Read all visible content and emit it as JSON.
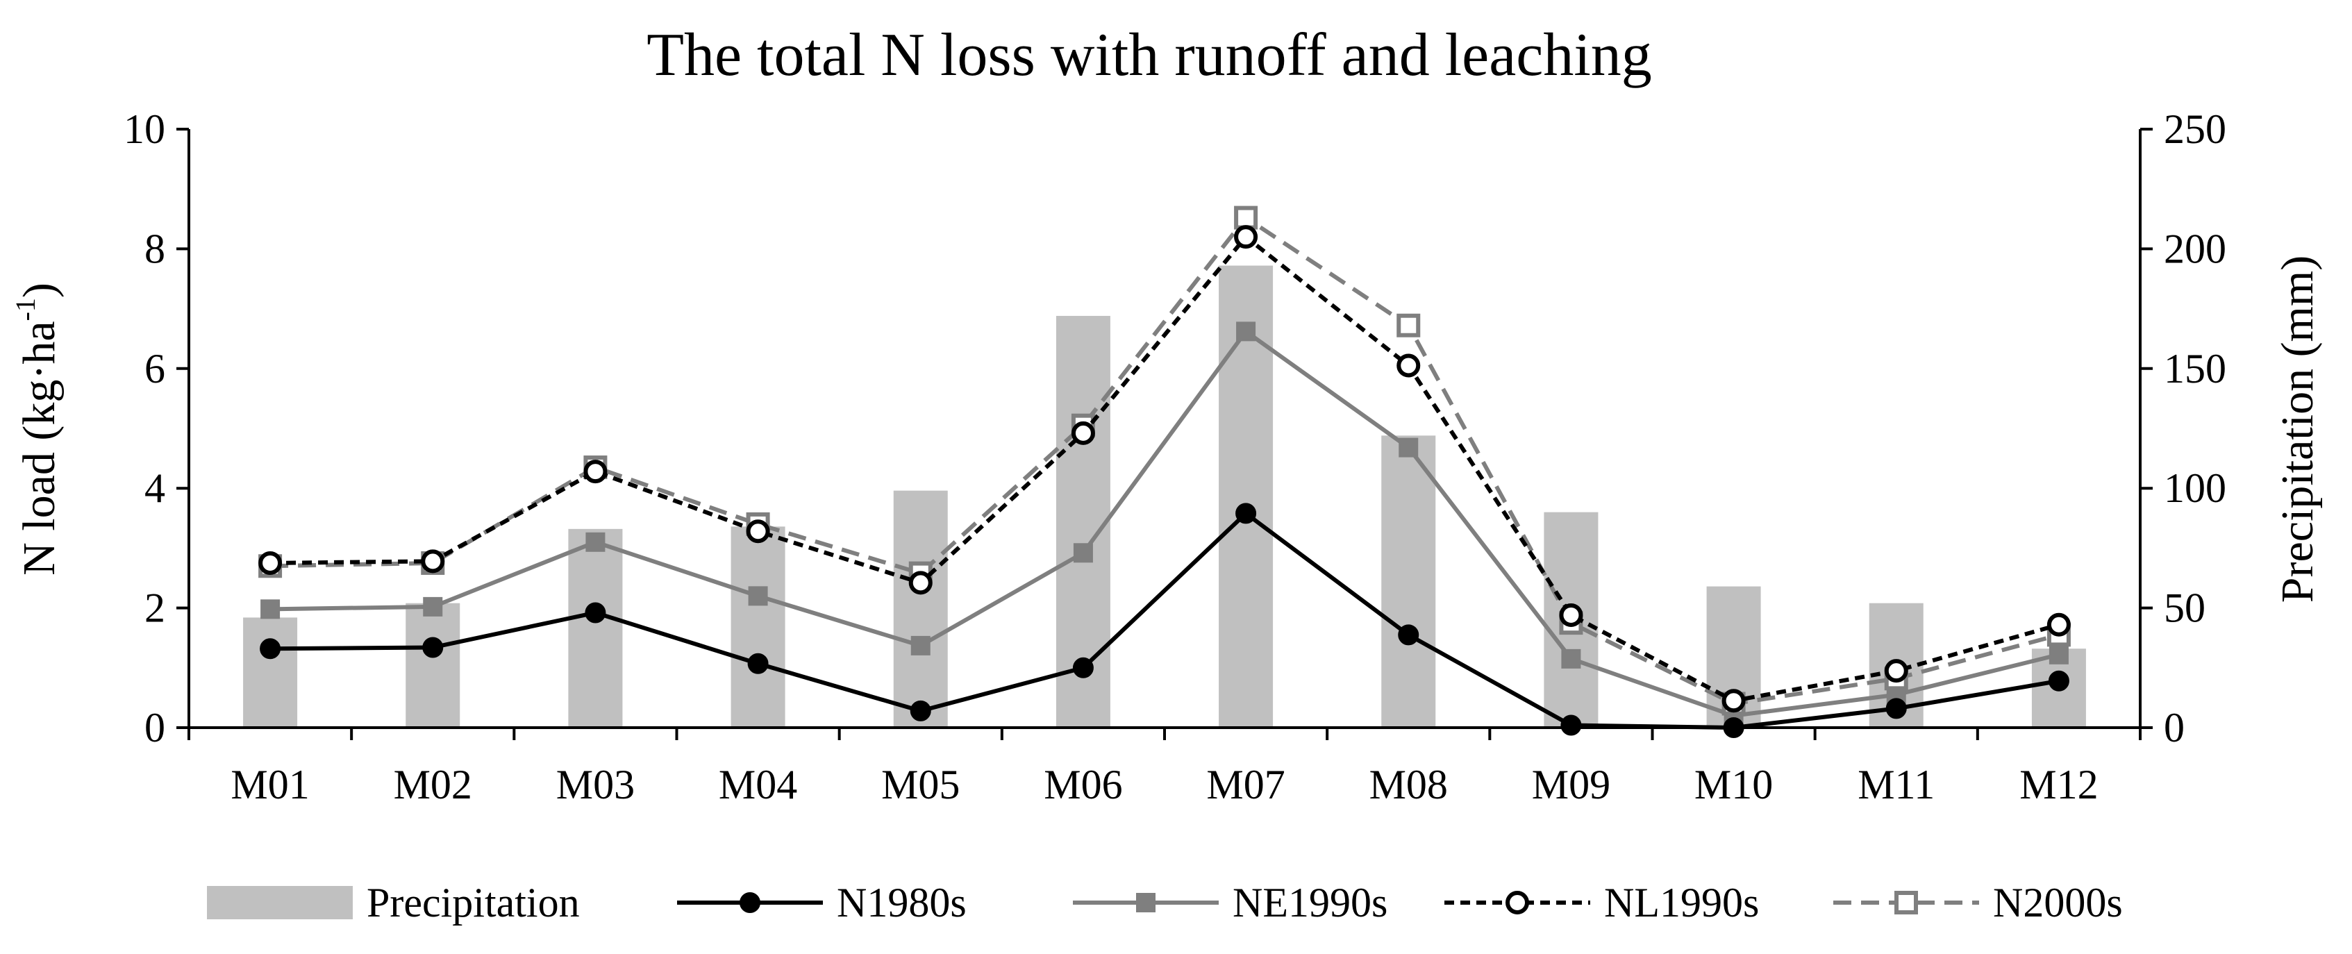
{
  "chart_data": {
    "type": "bar+line",
    "title": "The total N loss with  runoff and leaching",
    "categories": [
      "M01",
      "M02",
      "M03",
      "M04",
      "M05",
      "M06",
      "M07",
      "M08",
      "M09",
      "M10",
      "M11",
      "M12"
    ],
    "y_left": {
      "label_main": "N load (kg·ha",
      "label_sup": "-1",
      "label_end": ")",
      "ylim": [
        0,
        10
      ],
      "ticks": [
        "0",
        "2",
        "4",
        "6",
        "8",
        "10"
      ]
    },
    "y_right": {
      "label": "Precipitation (mm)",
      "ylim": [
        0,
        250
      ],
      "ticks": [
        "0",
        "50",
        "100",
        "150",
        "200",
        "250"
      ]
    },
    "grid": false,
    "legend_position": "bottom",
    "bars": {
      "name": "Precipitation",
      "axis": "right",
      "color": "#c0c0c0",
      "values": [
        46,
        52,
        83,
        84,
        99,
        172,
        193,
        122,
        90,
        59,
        52,
        33
      ]
    },
    "series": [
      {
        "name": "N1980s",
        "axis": "left",
        "color": "#000000",
        "dash": "solid",
        "marker": "filled-circle",
        "values": [
          1.32,
          1.34,
          1.92,
          1.07,
          0.28,
          1.0,
          3.58,
          1.55,
          0.04,
          0.0,
          0.32,
          0.78
        ]
      },
      {
        "name": "NE1990s",
        "axis": "left",
        "color": "#7f7f7f",
        "dash": "solid",
        "marker": "filled-square",
        "values": [
          1.98,
          2.02,
          3.1,
          2.2,
          1.37,
          2.92,
          6.62,
          4.68,
          1.15,
          0.2,
          0.55,
          1.22
        ]
      },
      {
        "name": "NL1990s",
        "axis": "left",
        "color": "#000000",
        "dash": "dashed",
        "marker": "open-circle",
        "values": [
          2.75,
          2.78,
          4.28,
          3.28,
          2.42,
          4.92,
          8.2,
          6.05,
          1.88,
          0.45,
          0.95,
          1.72
        ]
      },
      {
        "name": "N2000s",
        "axis": "left",
        "color": "#7f7f7f",
        "dash": "dashed",
        "marker": "open-square",
        "values": [
          2.7,
          2.75,
          4.35,
          3.4,
          2.58,
          5.05,
          8.52,
          6.72,
          1.75,
          0.4,
          0.82,
          1.55
        ]
      }
    ]
  }
}
